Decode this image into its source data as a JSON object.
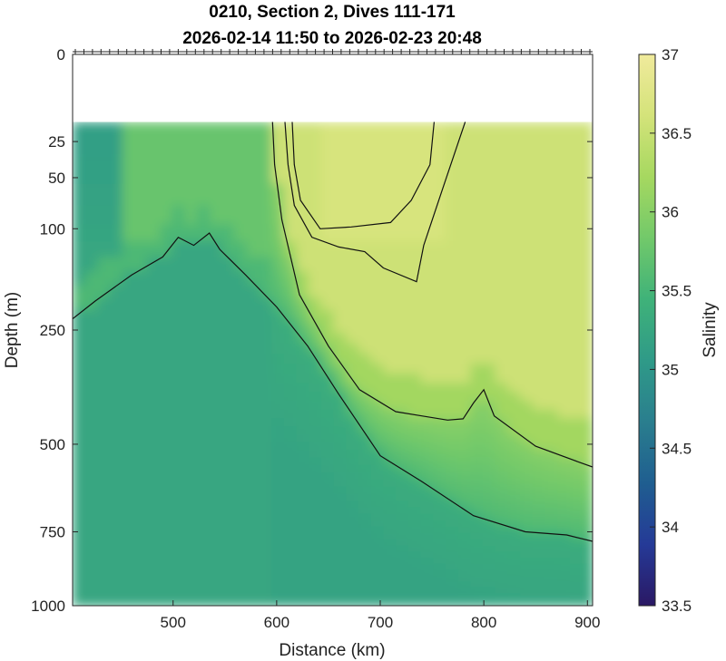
{
  "chart_data": {
    "type": "heatmap",
    "title": "0210, Section 2, Dives 111-171",
    "subtitle": "2026-02-14 11:50 to 2026-02-23 20:48",
    "xlabel": "Distance (km)",
    "ylabel": "Depth (m)",
    "colorbar_label": "Salinity",
    "xlim": [
      403,
      905
    ],
    "x_ticks": [
      500,
      600,
      700,
      800,
      900
    ],
    "y_scale": "sqrt",
    "ylim": [
      0,
      1000
    ],
    "y_ticks": [
      0,
      25,
      50,
      100,
      250,
      500,
      750,
      1000
    ],
    "data_top_depth": 15,
    "clim": [
      33.5,
      37
    ],
    "colorbar_ticks": [
      33.5,
      34,
      34.5,
      35,
      35.5,
      36,
      36.5,
      37
    ],
    "colormap": [
      "#2a1864",
      "#253a97",
      "#1f5e90",
      "#2a7e8e",
      "#2f9a88",
      "#3fb279",
      "#72c96a",
      "#a6d860",
      "#d4e37a",
      "#f0ea9c"
    ],
    "grid": false,
    "legend": "colorbar right",
    "contours": [
      {
        "name": "36.5",
        "points": [
          [
            615,
            15
          ],
          [
            617,
            40
          ],
          [
            623,
            70
          ],
          [
            642,
            100
          ],
          [
            672,
            98
          ],
          [
            710,
            93
          ],
          [
            730,
            70
          ],
          [
            748,
            40
          ],
          [
            752,
            15
          ]
        ]
      },
      {
        "name": "36.5",
        "points": [
          [
            608,
            15
          ],
          [
            611,
            40
          ],
          [
            617,
            75
          ],
          [
            634,
            110
          ],
          [
            660,
            122
          ],
          [
            685,
            128
          ],
          [
            703,
            150
          ],
          [
            735,
            170
          ],
          [
            742,
            120
          ],
          [
            760,
            60
          ],
          [
            782,
            15
          ]
        ]
      },
      {
        "name": "36",
        "points": [
          [
            596,
            15
          ],
          [
            598,
            40
          ],
          [
            605,
            90
          ],
          [
            622,
            190
          ],
          [
            650,
            280
          ],
          [
            680,
            370
          ],
          [
            715,
            420
          ],
          [
            740,
            430
          ],
          [
            765,
            440
          ],
          [
            780,
            437
          ],
          [
            790,
            400
          ],
          [
            800,
            370
          ],
          [
            810,
            430
          ],
          [
            850,
            505
          ],
          [
            890,
            545
          ],
          [
            905,
            560
          ]
        ]
      },
      {
        "name": "35.5",
        "points": [
          [
            403,
            230
          ],
          [
            425,
            200
          ],
          [
            460,
            160
          ],
          [
            490,
            135
          ],
          [
            505,
            110
          ],
          [
            520,
            120
          ],
          [
            535,
            105
          ],
          [
            545,
            125
          ],
          [
            570,
            160
          ],
          [
            600,
            210
          ],
          [
            630,
            280
          ],
          [
            660,
            380
          ],
          [
            700,
            530
          ],
          [
            740,
            600
          ],
          [
            790,
            700
          ],
          [
            840,
            750
          ],
          [
            880,
            760
          ],
          [
            905,
            780
          ]
        ]
      }
    ]
  }
}
